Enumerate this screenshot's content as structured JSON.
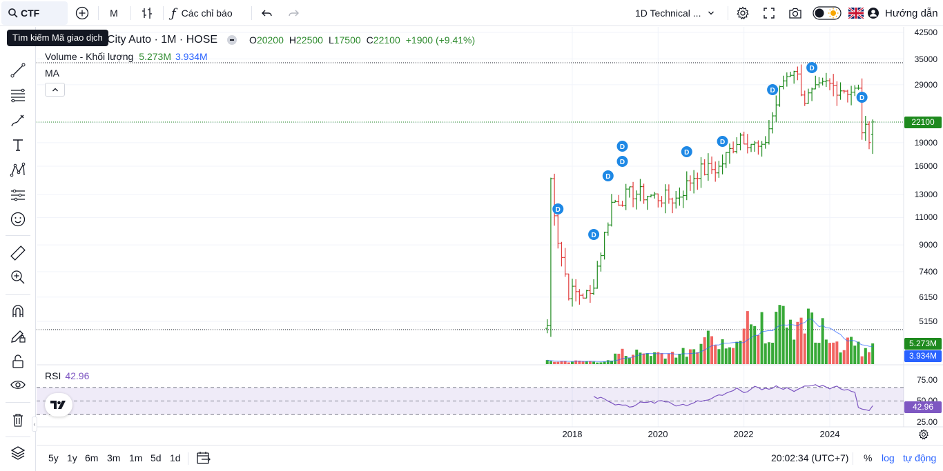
{
  "toolbar": {
    "symbol": "CTF",
    "interval": "M",
    "indicators_label": "Các chỉ báo",
    "technical_dropdown": "1D Technical ...",
    "guide_label": "Hướng dẫn"
  },
  "tooltip": {
    "text": "Tìm kiếm Mã giao dịch"
  },
  "legend": {
    "title": "City Auto · 1M · HOSE",
    "o_label": "O",
    "o_value": "20200",
    "h_label": "H",
    "h_value": "22500",
    "l_label": "L",
    "l_value": "17500",
    "c_label": "C",
    "c_value": "22100",
    "change": "+1900 (+9.41%)",
    "volume_label": "Volume - Khối lượng",
    "volume_value": "5.273M",
    "volume_ma": "3.934M",
    "ma_label": "MA"
  },
  "rsi": {
    "label": "RSI",
    "value": "42.96"
  },
  "price_scale": [
    "42500",
    "35000",
    "29000",
    "22000",
    "19000",
    "16000",
    "13000",
    "11000",
    "9000",
    "7400",
    "6150",
    "5150"
  ],
  "current_price_label": "22100",
  "volume_labels": [
    "5.273M",
    "3.934M"
  ],
  "rsi_scale": [
    "75.00",
    "50.00",
    "25.00"
  ],
  "rsi_current": "42.96",
  "time_axis": [
    "2018",
    "2020",
    "2022",
    "2024"
  ],
  "ranges": [
    "5y",
    "1y",
    "6m",
    "3m",
    "1m",
    "5d",
    "1d"
  ],
  "clock": "20:02:34 (UTC+7)",
  "bottom_right": {
    "percent": "%",
    "log": "log",
    "auto": "tự động"
  },
  "dividend_marker": "D",
  "colors": {
    "up": "#1e8a1e",
    "down": "#e03a3a",
    "rsi": "#7e57c2",
    "accent": "#2962ff",
    "marker": "#1e88e5"
  },
  "chart_data": {
    "type": "ohlc",
    "interval": "1M",
    "price_axis": {
      "scale": "log",
      "range": [
        5150,
        42500
      ]
    },
    "last_candle": {
      "open": 20200,
      "high": 22500,
      "low": 17500,
      "close": 22100
    },
    "approx_closes": [
      {
        "x": "2017-06",
        "y": 5000
      },
      {
        "x": "2017-07",
        "y": 14500
      },
      {
        "x": "2017-09",
        "y": 9400
      },
      {
        "x": "2017-12",
        "y": 6400
      },
      {
        "x": "2018-06",
        "y": 6200
      },
      {
        "x": "2018-09",
        "y": 8600
      },
      {
        "x": "2018-12",
        "y": 12200
      },
      {
        "x": "2019-06",
        "y": 13200
      },
      {
        "x": "2019-12",
        "y": 12800
      },
      {
        "x": "2020-06",
        "y": 12600
      },
      {
        "x": "2020-12",
        "y": 15400
      },
      {
        "x": "2021-06",
        "y": 15800
      },
      {
        "x": "2021-12",
        "y": 20200
      },
      {
        "x": "2022-06",
        "y": 17800
      },
      {
        "x": "2022-12",
        "y": 30000
      },
      {
        "x": "2023-03",
        "y": 33000
      },
      {
        "x": "2023-06",
        "y": 26000
      },
      {
        "x": "2023-12",
        "y": 29000
      },
      {
        "x": "2024-06",
        "y": 28000
      },
      {
        "x": "2024-09",
        "y": 27500
      },
      {
        "x": "2024-10",
        "y": 21000
      },
      {
        "x": "2024-12",
        "y": 20200
      },
      {
        "x": "2025-01",
        "y": 22100
      }
    ],
    "volume": {
      "last": "5.273M",
      "ma": "3.934M"
    },
    "rsi": {
      "last": 42.96,
      "bands": [
        25,
        50,
        75
      ]
    }
  }
}
